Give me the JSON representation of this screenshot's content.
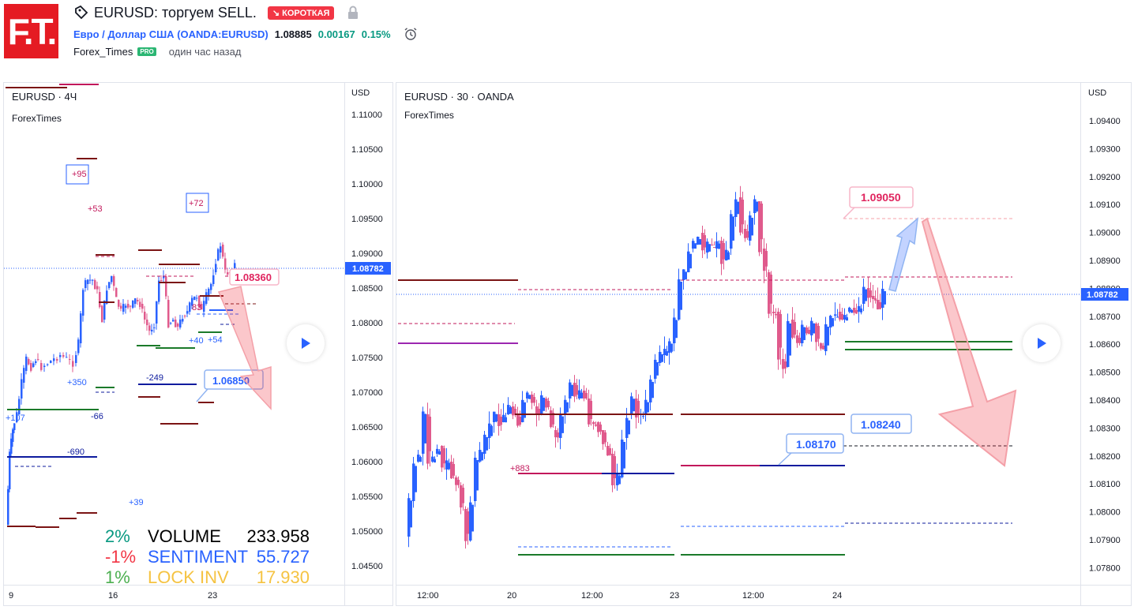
{
  "header": {
    "logo_text": "F.T.",
    "idea_title": "EURUSD: торгуем SELL.",
    "direction_badge": "↘ КОРОТКАЯ",
    "instrument_name": "Евро / Доллар США",
    "instrument_ticker": "(OANDA:EURUSD)",
    "last_price": "1.08885",
    "change_abs": "0.00167",
    "change_pct": "0.15%",
    "author": "Forex_Times",
    "author_badge": "PRO",
    "published": "один час назад"
  },
  "left_chart": {
    "symbol_label": "EURUSD · 4Ч",
    "author_label": "ForexTimes",
    "currency": "USD",
    "price_ticks": [
      "1.11000",
      "1.10500",
      "1.10000",
      "1.09500",
      "1.09000",
      "1.08500",
      "1.08000",
      "1.07500",
      "1.07000",
      "1.06500",
      "1.06000",
      "1.05500",
      "1.05000",
      "1.04500"
    ],
    "time_ticks": [
      "9",
      "16",
      "23"
    ],
    "current_price": "1.08782",
    "annotations": [
      "+95",
      "+72",
      "+53",
      "+40",
      "+54",
      "+350",
      "-249",
      "-66",
      "-690",
      "+39",
      "+107",
      "83"
    ],
    "callout_top": "1.08360",
    "callout_bottom": "1.06850",
    "stats": [
      {
        "pct": "2%",
        "label": "VOLUME",
        "value": "233.958",
        "pct_color": "#089981",
        "label_color": "#000000",
        "value_color": "#000000"
      },
      {
        "pct": "-1%",
        "label": "SENTIMENT",
        "value": "55.727",
        "pct_color": "#f23645",
        "label_color": "#2962ff",
        "value_color": "#2962ff"
      },
      {
        "pct": "1%",
        "label": "LOCK INV",
        "value": "17.930",
        "pct_color": "#4caf50",
        "label_color": "#f5c342",
        "value_color": "#f5c342"
      }
    ]
  },
  "right_chart": {
    "symbol_label": "EURUSD · 30 · OANDA",
    "author_label": "ForexTimes",
    "currency": "USD",
    "price_ticks": [
      "1.09400",
      "1.09300",
      "1.09200",
      "1.09100",
      "1.09000",
      "1.08900",
      "1.08800",
      "1.08700",
      "1.08600",
      "1.08500",
      "1.08400",
      "1.08300",
      "1.08200",
      "1.08100",
      "1.08000",
      "1.07900",
      "1.07800"
    ],
    "time_ticks": [
      "12:00",
      "20",
      "12:00",
      "23",
      "12:00",
      "24"
    ],
    "current_price": "1.08782",
    "annotations": [
      "+883"
    ],
    "callout_target": "1.09050",
    "callout_a": "1.08240",
    "callout_b": "1.08170"
  }
}
